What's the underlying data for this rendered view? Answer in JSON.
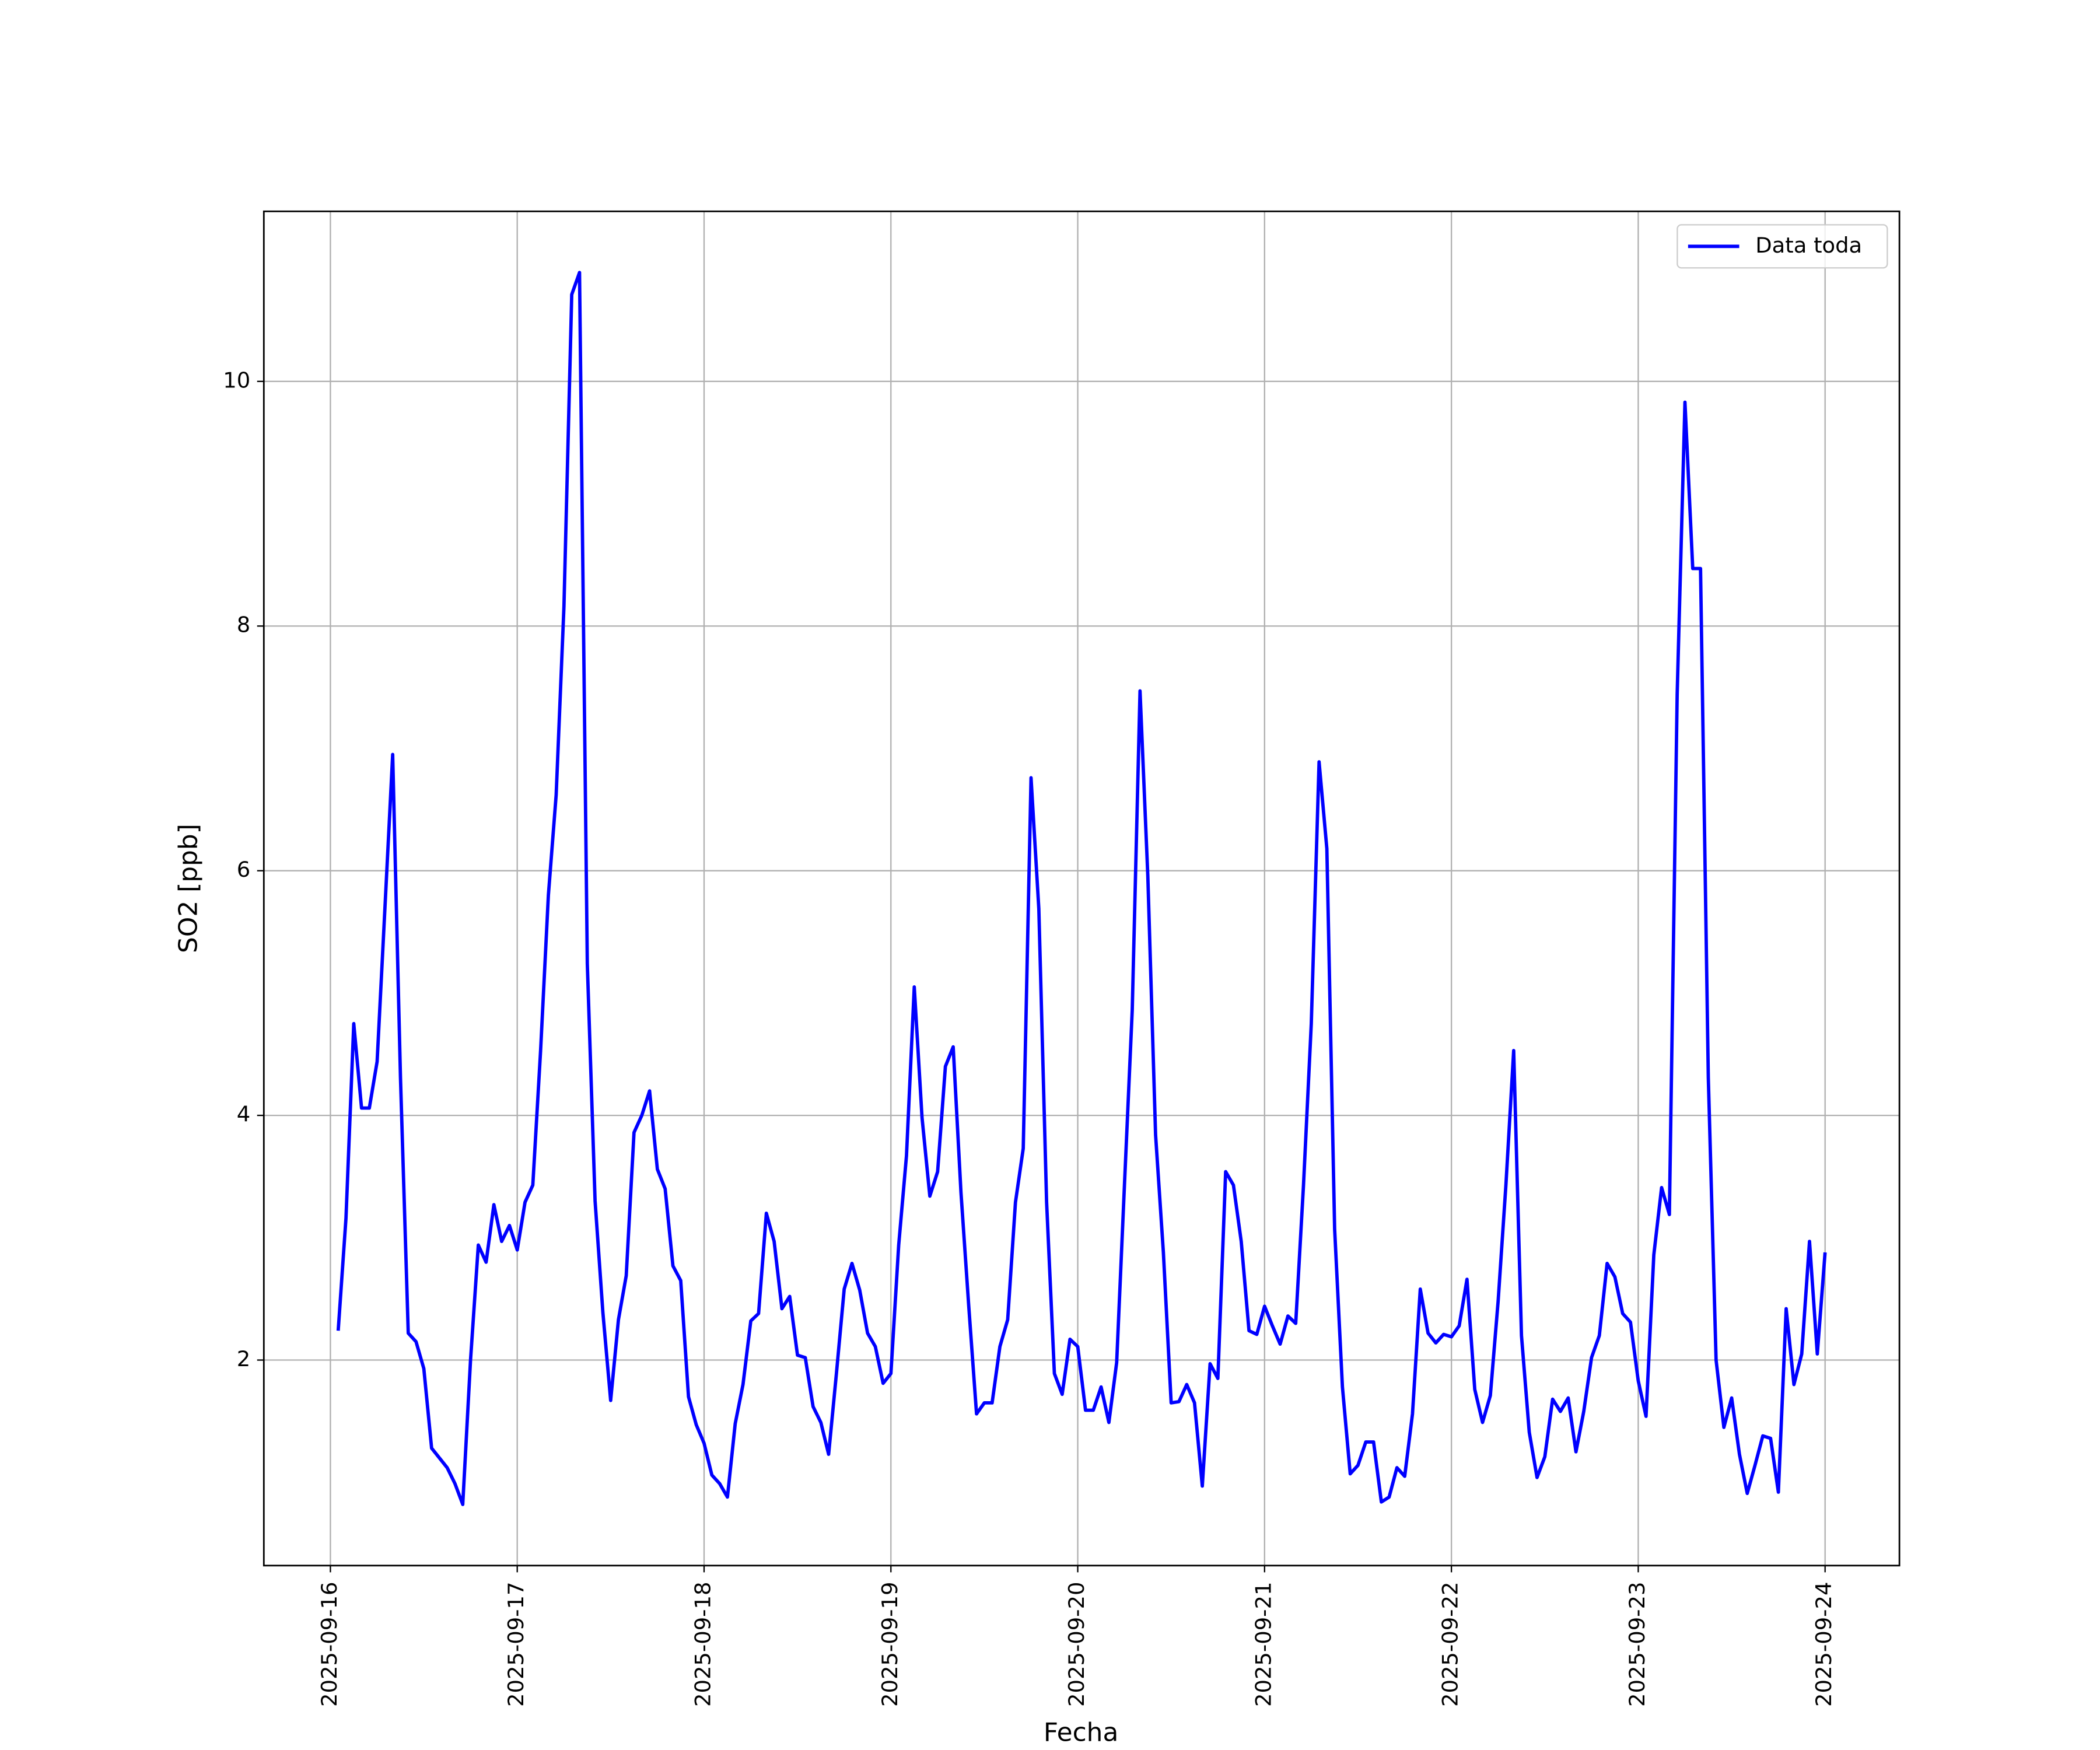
{
  "chart_data": {
    "type": "line",
    "xlabel": "Fecha",
    "ylabel": "SO2 [ppb]",
    "x": [
      "2025-09-16T01:00",
      "2025-09-16T02:00",
      "2025-09-16T03:00",
      "2025-09-16T04:00",
      "2025-09-16T05:00",
      "2025-09-16T06:00",
      "2025-09-16T07:00",
      "2025-09-16T08:00",
      "2025-09-16T09:00",
      "2025-09-16T10:00",
      "2025-09-16T11:00",
      "2025-09-16T12:00",
      "2025-09-16T13:00",
      "2025-09-16T14:00",
      "2025-09-16T15:00",
      "2025-09-16T16:00",
      "2025-09-16T17:00",
      "2025-09-16T18:00",
      "2025-09-16T19:00",
      "2025-09-16T20:00",
      "2025-09-16T21:00",
      "2025-09-16T22:00",
      "2025-09-16T23:00",
      "2025-09-17T00:00",
      "2025-09-17T01:00",
      "2025-09-17T02:00",
      "2025-09-17T03:00",
      "2025-09-17T04:00",
      "2025-09-17T05:00",
      "2025-09-17T06:00",
      "2025-09-17T07:00",
      "2025-09-17T08:00",
      "2025-09-17T09:00",
      "2025-09-17T10:00",
      "2025-09-17T11:00",
      "2025-09-17T12:00",
      "2025-09-17T13:00",
      "2025-09-17T14:00",
      "2025-09-17T15:00",
      "2025-09-17T16:00",
      "2025-09-17T17:00",
      "2025-09-17T18:00",
      "2025-09-17T19:00",
      "2025-09-17T20:00",
      "2025-09-17T21:00",
      "2025-09-17T22:00",
      "2025-09-17T23:00",
      "2025-09-18T00:00",
      "2025-09-18T01:00",
      "2025-09-18T02:00",
      "2025-09-18T03:00",
      "2025-09-18T04:00",
      "2025-09-18T05:00",
      "2025-09-18T06:00",
      "2025-09-18T07:00",
      "2025-09-18T08:00",
      "2025-09-18T09:00",
      "2025-09-18T10:00",
      "2025-09-18T11:00",
      "2025-09-18T12:00",
      "2025-09-18T13:00",
      "2025-09-18T14:00",
      "2025-09-18T15:00",
      "2025-09-18T16:00",
      "2025-09-18T17:00",
      "2025-09-18T18:00",
      "2025-09-18T19:00",
      "2025-09-18T20:00",
      "2025-09-18T21:00",
      "2025-09-18T22:00",
      "2025-09-18T23:00",
      "2025-09-19T00:00",
      "2025-09-19T01:00",
      "2025-09-19T02:00",
      "2025-09-19T03:00",
      "2025-09-19T04:00",
      "2025-09-19T05:00",
      "2025-09-19T06:00",
      "2025-09-19T07:00",
      "2025-09-19T08:00",
      "2025-09-19T09:00",
      "2025-09-19T10:00",
      "2025-09-19T11:00",
      "2025-09-19T12:00",
      "2025-09-19T13:00",
      "2025-09-19T14:00",
      "2025-09-19T15:00",
      "2025-09-19T16:00",
      "2025-09-19T17:00",
      "2025-09-19T18:00",
      "2025-09-19T19:00",
      "2025-09-19T20:00",
      "2025-09-19T21:00",
      "2025-09-19T22:00",
      "2025-09-19T23:00",
      "2025-09-20T00:00",
      "2025-09-20T01:00",
      "2025-09-20T02:00",
      "2025-09-20T03:00",
      "2025-09-20T04:00",
      "2025-09-20T05:00",
      "2025-09-20T06:00",
      "2025-09-20T07:00",
      "2025-09-20T08:00",
      "2025-09-20T09:00",
      "2025-09-20T10:00",
      "2025-09-20T11:00",
      "2025-09-20T12:00",
      "2025-09-20T13:00",
      "2025-09-20T14:00",
      "2025-09-20T15:00",
      "2025-09-20T16:00",
      "2025-09-20T17:00",
      "2025-09-20T18:00",
      "2025-09-20T19:00",
      "2025-09-20T20:00",
      "2025-09-20T21:00",
      "2025-09-20T22:00",
      "2025-09-20T23:00",
      "2025-09-21T00:00",
      "2025-09-21T01:00",
      "2025-09-21T02:00",
      "2025-09-21T03:00",
      "2025-09-21T04:00",
      "2025-09-21T05:00",
      "2025-09-21T06:00",
      "2025-09-21T07:00",
      "2025-09-21T08:00",
      "2025-09-21T09:00",
      "2025-09-21T10:00",
      "2025-09-21T11:00",
      "2025-09-21T12:00",
      "2025-09-21T13:00",
      "2025-09-21T14:00",
      "2025-09-21T15:00",
      "2025-09-21T16:00",
      "2025-09-21T17:00",
      "2025-09-21T18:00",
      "2025-09-21T19:00",
      "2025-09-21T20:00",
      "2025-09-21T21:00",
      "2025-09-21T22:00",
      "2025-09-21T23:00",
      "2025-09-22T00:00",
      "2025-09-22T01:00",
      "2025-09-22T02:00",
      "2025-09-22T03:00",
      "2025-09-22T04:00",
      "2025-09-22T05:00",
      "2025-09-22T06:00",
      "2025-09-22T07:00",
      "2025-09-22T08:00",
      "2025-09-22T09:00",
      "2025-09-22T10:00",
      "2025-09-22T11:00",
      "2025-09-22T12:00",
      "2025-09-22T13:00",
      "2025-09-22T14:00",
      "2025-09-22T15:00",
      "2025-09-22T16:00",
      "2025-09-22T17:00",
      "2025-09-22T18:00",
      "2025-09-22T19:00",
      "2025-09-22T20:00",
      "2025-09-22T21:00",
      "2025-09-22T22:00",
      "2025-09-22T23:00",
      "2025-09-23T00:00",
      "2025-09-23T01:00",
      "2025-09-23T02:00",
      "2025-09-23T03:00",
      "2025-09-23T04:00",
      "2025-09-23T05:00",
      "2025-09-23T06:00",
      "2025-09-23T07:00",
      "2025-09-23T08:00",
      "2025-09-23T09:00",
      "2025-09-23T10:00",
      "2025-09-23T11:00",
      "2025-09-23T12:00",
      "2025-09-23T13:00",
      "2025-09-23T14:00",
      "2025-09-23T15:00",
      "2025-09-23T16:00",
      "2025-09-23T17:00",
      "2025-09-23T18:00",
      "2025-09-23T19:00",
      "2025-09-23T20:00",
      "2025-09-23T21:00",
      "2025-09-23T22:00",
      "2025-09-23T23:00",
      "2025-09-24T00:00"
    ],
    "series": [
      {
        "name": "Data toda",
        "color": "#0000ff",
        "values": [
          2.24,
          3.16,
          4.75,
          4.06,
          4.06,
          4.44,
          5.69,
          6.95,
          4.31,
          2.22,
          2.15,
          1.93,
          1.28,
          1.2,
          1.12,
          0.99,
          0.82,
          2.0,
          2.94,
          2.8,
          3.27,
          2.97,
          3.1,
          2.9,
          3.29,
          3.43,
          4.53,
          5.8,
          6.62,
          8.16,
          10.71,
          10.89,
          5.24,
          3.3,
          2.39,
          1.67,
          2.33,
          2.69,
          3.86,
          4.0,
          4.2,
          3.56,
          3.4,
          2.77,
          2.65,
          1.7,
          1.47,
          1.32,
          1.06,
          0.99,
          0.88,
          1.48,
          1.8,
          2.32,
          2.38,
          3.2,
          2.97,
          2.42,
          2.52,
          2.04,
          2.02,
          1.62,
          1.49,
          1.23,
          1.89,
          2.58,
          2.79,
          2.57,
          2.22,
          2.11,
          1.81,
          1.89,
          2.94,
          3.67,
          5.05,
          3.98,
          3.34,
          3.54,
          4.4,
          4.56,
          3.37,
          2.44,
          1.56,
          1.65,
          1.65,
          2.11,
          2.33,
          3.29,
          3.73,
          6.76,
          5.69,
          3.29,
          1.89,
          1.72,
          2.17,
          2.11,
          1.59,
          1.59,
          1.78,
          1.49,
          1.98,
          3.43,
          4.86,
          7.47,
          5.96,
          3.84,
          2.88,
          1.65,
          1.66,
          1.8,
          1.65,
          0.97,
          1.97,
          1.85,
          3.54,
          3.43,
          2.97,
          2.24,
          2.21,
          2.44,
          2.28,
          2.13,
          2.36,
          2.3,
          3.43,
          4.75,
          6.89,
          6.18,
          3.07,
          1.78,
          1.07,
          1.14,
          1.33,
          1.33,
          0.84,
          0.88,
          1.12,
          1.05,
          1.56,
          2.58,
          2.22,
          2.14,
          2.21,
          2.19,
          2.28,
          2.66,
          1.76,
          1.49,
          1.71,
          2.48,
          3.43,
          4.53,
          2.2,
          1.41,
          1.04,
          1.21,
          1.68,
          1.58,
          1.69,
          1.25,
          1.58,
          2.02,
          2.2,
          2.79,
          2.68,
          2.38,
          2.31,
          1.83,
          1.54,
          2.86,
          3.41,
          3.19,
          7.44,
          9.83,
          8.47,
          8.47,
          4.31,
          2.0,
          1.45,
          1.69,
          1.23,
          0.91,
          1.14,
          1.38,
          1.36,
          0.92,
          2.42,
          1.8,
          2.05,
          2.97,
          2.05,
          2.88
        ]
      }
    ],
    "xlim": [
      "2025-09-15T15:27",
      "2025-09-24T09:33"
    ],
    "xticks": [
      "2025-09-16",
      "2025-09-17",
      "2025-09-18",
      "2025-09-19",
      "2025-09-20",
      "2025-09-21",
      "2025-09-22",
      "2025-09-23",
      "2025-09-24"
    ],
    "ylim": [
      0.32,
      11.39
    ],
    "yticks": [
      2,
      4,
      6,
      8,
      10
    ],
    "grid": true,
    "legend": "upper right"
  }
}
